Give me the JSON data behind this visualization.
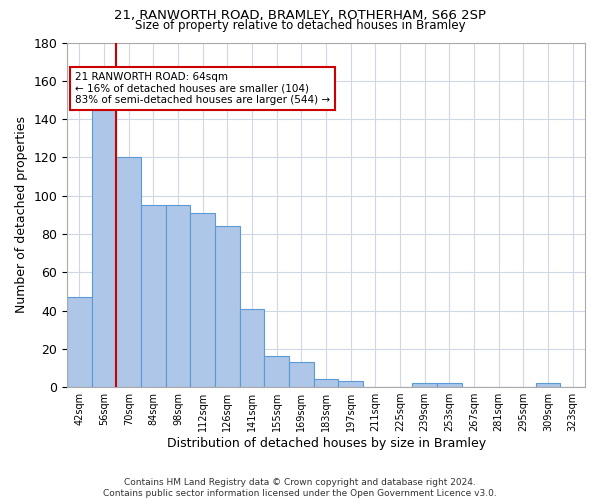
{
  "title_line1": "21, RANWORTH ROAD, BRAMLEY, ROTHERHAM, S66 2SP",
  "title_line2": "Size of property relative to detached houses in Bramley",
  "xlabel": "Distribution of detached houses by size in Bramley",
  "ylabel": "Number of detached properties",
  "footer": "Contains HM Land Registry data © Crown copyright and database right 2024.\nContains public sector information licensed under the Open Government Licence v3.0.",
  "bar_labels": [
    "42sqm",
    "56sqm",
    "70sqm",
    "84sqm",
    "98sqm",
    "112sqm",
    "126sqm",
    "141sqm",
    "155sqm",
    "169sqm",
    "183sqm",
    "197sqm",
    "211sqm",
    "225sqm",
    "239sqm",
    "253sqm",
    "267sqm",
    "281sqm",
    "295sqm",
    "309sqm",
    "323sqm"
  ],
  "bar_values": [
    47,
    145,
    120,
    95,
    95,
    91,
    84,
    41,
    16,
    13,
    4,
    3,
    0,
    0,
    2,
    2,
    0,
    0,
    0,
    2,
    0
  ],
  "bar_color": "#aec6e8",
  "bar_edge_color": "#5b9bd5",
  "ylim": [
    0,
    180
  ],
  "yticks": [
    0,
    20,
    40,
    60,
    80,
    100,
    120,
    140,
    160,
    180
  ],
  "marker_label_line1": "21 RANWORTH ROAD: 64sqm",
  "marker_label_line2": "← 16% of detached houses are smaller (104)",
  "marker_label_line3": "83% of semi-detached houses are larger (544) →",
  "marker_color": "#cc0000",
  "annotation_box_color": "#ffffff",
  "annotation_box_edge_color": "#cc0000",
  "background_color": "#ffffff",
  "grid_color": "#d0d8e8"
}
